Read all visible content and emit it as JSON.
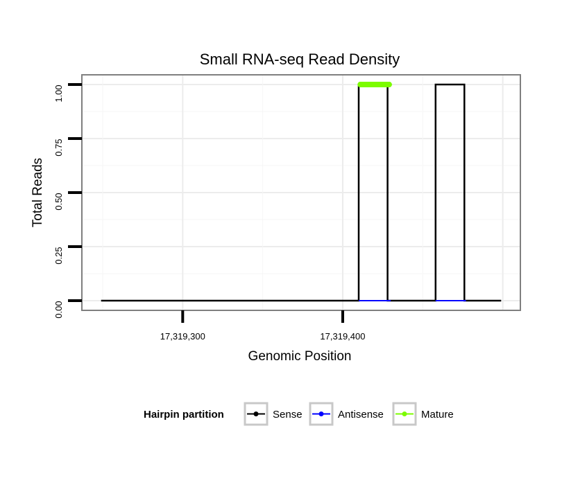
{
  "chart_data": {
    "type": "line",
    "title": "Small RNA-seq Read Density",
    "xlabel": "Genomic Position",
    "ylabel": "Total Reads",
    "xlim": [
      17319237,
      17319511
    ],
    "ylim": [
      -0.045,
      1.045
    ],
    "x_ticks": [
      17319300,
      17319400
    ],
    "x_tick_labels": [
      "17,319,300",
      "17,319,400"
    ],
    "y_ticks": [
      0,
      0.25,
      0.5,
      0.75,
      1
    ],
    "y_tick_labels": [
      "0.00",
      "0.25",
      "0.50",
      "0.75",
      "1.00"
    ],
    "grid": true,
    "legend_position": "bottom",
    "legend_title": "Hairpin partition",
    "series": [
      {
        "name": "Sense",
        "color": "#000000",
        "x": [
          17319249,
          17319410,
          17319410,
          17319428,
          17319428,
          17319458,
          17319458,
          17319476,
          17319476,
          17319499
        ],
        "y": [
          0,
          0,
          1,
          1,
          0,
          0,
          1,
          1,
          0,
          0
        ]
      },
      {
        "name": "Antisense",
        "color": "#0000ff",
        "x": [
          17319410,
          17319430,
          17319458,
          17319477
        ],
        "y": [
          0,
          0,
          0,
          0
        ],
        "segments": [
          [
            0,
            1
          ],
          [
            2,
            3
          ]
        ]
      },
      {
        "name": "Mature",
        "color": "#7cfc00",
        "x": [
          17319411,
          17319429
        ],
        "y": [
          1,
          1
        ]
      }
    ]
  }
}
